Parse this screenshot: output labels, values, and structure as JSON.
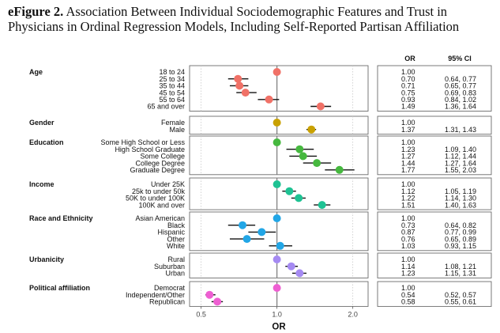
{
  "caption": {
    "label": "eFigure 2.",
    "text": "Association Between Individual Sociodemographic Features and Trust in Physicians in Ordinal Regression Models, Including Self-Reported Partisan Affiliation"
  },
  "chart_data": {
    "type": "forest",
    "xlabel": "OR",
    "xlim": [
      0.45,
      2.3
    ],
    "xscale": "log",
    "xticks": [
      0.5,
      1.0,
      2.0
    ],
    "xtick_labels": [
      "0.5",
      "1.0",
      "2.0"
    ],
    "reference_line": 1.0,
    "table_headers": {
      "or": "OR",
      "ci": "95% CI"
    },
    "groups": [
      {
        "name": "Age",
        "color": "#f07167",
        "rows": [
          {
            "label": "18 to 24",
            "or": 1.0,
            "or_text": "1.00",
            "lo": null,
            "hi": null,
            "ci_text": ""
          },
          {
            "label": "25 to 34",
            "or": 0.7,
            "or_text": "0.70",
            "lo": 0.64,
            "hi": 0.77,
            "ci_text": "0.64, 0.77"
          },
          {
            "label": "35 to 44",
            "or": 0.71,
            "or_text": "0.71",
            "lo": 0.65,
            "hi": 0.77,
            "ci_text": "0.65, 0.77"
          },
          {
            "label": "45 to 54",
            "or": 0.75,
            "or_text": "0.75",
            "lo": 0.69,
            "hi": 0.83,
            "ci_text": "0.69, 0.83"
          },
          {
            "label": "55 to 64",
            "or": 0.93,
            "or_text": "0.93",
            "lo": 0.84,
            "hi": 1.02,
            "ci_text": "0.84, 1.02"
          },
          {
            "label": "65 and over",
            "or": 1.49,
            "or_text": "1.49",
            "lo": 1.36,
            "hi": 1.64,
            "ci_text": "1.36, 1.64"
          }
        ]
      },
      {
        "name": "Gender",
        "color": "#c9a100",
        "rows": [
          {
            "label": "Female",
            "or": 1.0,
            "or_text": "1.00",
            "lo": null,
            "hi": null,
            "ci_text": ""
          },
          {
            "label": "Male",
            "or": 1.37,
            "or_text": "1.37",
            "lo": 1.31,
            "hi": 1.43,
            "ci_text": "1.31, 1.43"
          }
        ]
      },
      {
        "name": "Education",
        "color": "#46b83f",
        "rows": [
          {
            "label": "Some High School or Less",
            "or": 1.0,
            "or_text": "1.00",
            "lo": null,
            "hi": null,
            "ci_text": ""
          },
          {
            "label": "High School Graduate",
            "or": 1.23,
            "or_text": "1.23",
            "lo": 1.09,
            "hi": 1.4,
            "ci_text": "1.09, 1.40"
          },
          {
            "label": "Some College",
            "or": 1.27,
            "or_text": "1.27",
            "lo": 1.12,
            "hi": 1.44,
            "ci_text": "1.12, 1.44"
          },
          {
            "label": "College Degree",
            "or": 1.44,
            "or_text": "1.44",
            "lo": 1.27,
            "hi": 1.64,
            "ci_text": "1.27, 1.64"
          },
          {
            "label": "Graduate Degree",
            "or": 1.77,
            "or_text": "1.77",
            "lo": 1.55,
            "hi": 2.03,
            "ci_text": "1.55, 2.03"
          }
        ]
      },
      {
        "name": "Income",
        "color": "#1ec293",
        "rows": [
          {
            "label": "Under 25K",
            "or": 1.0,
            "or_text": "1.00",
            "lo": null,
            "hi": null,
            "ci_text": ""
          },
          {
            "label": "25k to under 50k",
            "or": 1.12,
            "or_text": "1.12",
            "lo": 1.05,
            "hi": 1.19,
            "ci_text": "1.05, 1.19"
          },
          {
            "label": "50K to under 100K",
            "or": 1.22,
            "or_text": "1.22",
            "lo": 1.14,
            "hi": 1.3,
            "ci_text": "1.14, 1.30"
          },
          {
            "label": "100K and over",
            "or": 1.51,
            "or_text": "1.51",
            "lo": 1.4,
            "hi": 1.63,
            "ci_text": "1.40, 1.63"
          }
        ]
      },
      {
        "name": "Race and Ethnicity",
        "color": "#22a6e6",
        "rows": [
          {
            "label": "Asian American",
            "or": 1.0,
            "or_text": "1.00",
            "lo": null,
            "hi": null,
            "ci_text": ""
          },
          {
            "label": "Black",
            "or": 0.73,
            "or_text": "0.73",
            "lo": 0.64,
            "hi": 0.82,
            "ci_text": "0.64, 0.82"
          },
          {
            "label": "Hispanic",
            "or": 0.87,
            "or_text": "0.87",
            "lo": 0.77,
            "hi": 0.99,
            "ci_text": "0.77, 0.99"
          },
          {
            "label": "Other",
            "or": 0.76,
            "or_text": "0.76",
            "lo": 0.65,
            "hi": 0.89,
            "ci_text": "0.65, 0.89"
          },
          {
            "label": "White",
            "or": 1.03,
            "or_text": "1.03",
            "lo": 0.93,
            "hi": 1.15,
            "ci_text": "0.93, 1.15"
          }
        ]
      },
      {
        "name": "Urbanicity",
        "color": "#a58af2",
        "rows": [
          {
            "label": "Rural",
            "or": 1.0,
            "or_text": "1.00",
            "lo": null,
            "hi": null,
            "ci_text": ""
          },
          {
            "label": "Suburban",
            "or": 1.14,
            "or_text": "1.14",
            "lo": 1.08,
            "hi": 1.21,
            "ci_text": "1.08, 1.21"
          },
          {
            "label": "Urban",
            "or": 1.23,
            "or_text": "1.23",
            "lo": 1.15,
            "hi": 1.31,
            "ci_text": "1.15, 1.31"
          }
        ]
      },
      {
        "name": "Political affiliation",
        "color": "#ee5fd2",
        "rows": [
          {
            "label": "Democrat",
            "or": 1.0,
            "or_text": "1.00",
            "lo": null,
            "hi": null,
            "ci_text": ""
          },
          {
            "label": "Independent/Other",
            "or": 0.54,
            "or_text": "0.54",
            "lo": 0.52,
            "hi": 0.57,
            "ci_text": "0.52, 0.57"
          },
          {
            "label": "Republican",
            "or": 0.58,
            "or_text": "0.58",
            "lo": 0.55,
            "hi": 0.61,
            "ci_text": "0.55, 0.61"
          }
        ]
      }
    ]
  }
}
